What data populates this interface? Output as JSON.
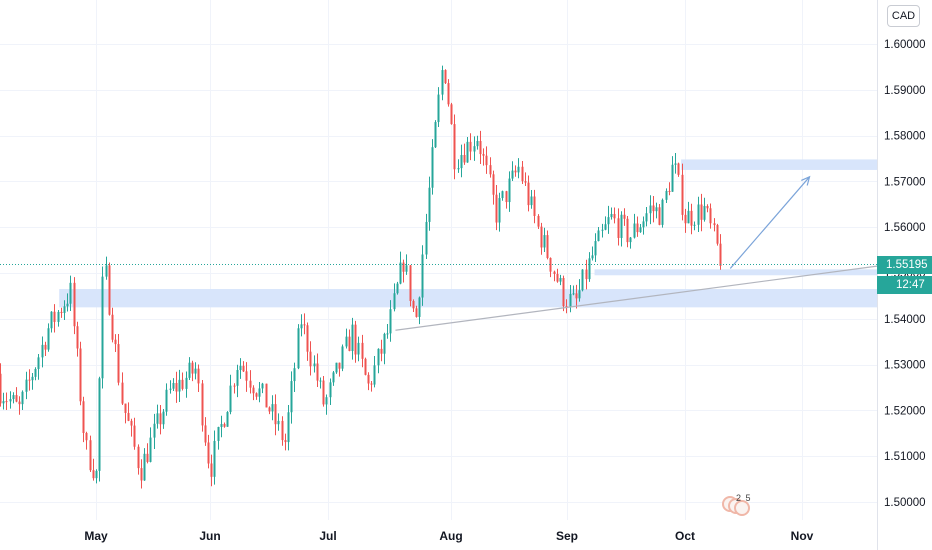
{
  "currency": "CAD",
  "last_price_label": "1.55195",
  "countdown": "12:47",
  "events_badge": "2 5",
  "colors": {
    "up": "#26a69a",
    "down": "#ef5350",
    "zone": "#d6e4fb",
    "trendline": "#b2b5be",
    "arrow": "#7ba4d9",
    "grid": "#f0f3fa"
  },
  "chart_data": {
    "type": "candlestick",
    "x_axis": {
      "labels": [
        "May",
        "Jun",
        "Jul",
        "Aug",
        "Sep",
        "Oct",
        "Nov"
      ]
    },
    "y_axis": {
      "range": [
        1.495,
        1.6055
      ],
      "ticks": [
        "1.50000",
        "1.51000",
        "1.52000",
        "1.53000",
        "1.54000",
        "1.55000",
        "1.56000",
        "1.57000",
        "1.58000",
        "1.59000",
        "1.60000"
      ]
    },
    "last_price": 1.55195,
    "series_path": [
      [
        "2021-04-01",
        1.528
      ],
      [
        "2021-04-10",
        1.52
      ],
      [
        "2021-04-18",
        1.538
      ],
      [
        "2021-04-24",
        1.546
      ],
      [
        "2021-04-28",
        1.512
      ],
      [
        "2021-05-01",
        1.506
      ],
      [
        "2021-05-03",
        1.553
      ],
      [
        "2021-05-08",
        1.522
      ],
      [
        "2021-05-13",
        1.507
      ],
      [
        "2021-05-21",
        1.524
      ],
      [
        "2021-05-28",
        1.529
      ],
      [
        "2021-06-01",
        1.507
      ],
      [
        "2021-06-08",
        1.531
      ],
      [
        "2021-06-15",
        1.522
      ],
      [
        "2021-06-20",
        1.513
      ],
      [
        "2021-06-24",
        1.54
      ],
      [
        "2021-06-30",
        1.521
      ],
      [
        "2021-07-07",
        1.537
      ],
      [
        "2021-07-11",
        1.525
      ],
      [
        "2021-07-16",
        1.537
      ],
      [
        "2021-07-20",
        1.553
      ],
      [
        "2021-07-23",
        1.539
      ],
      [
        "2021-07-27",
        1.573
      ],
      [
        "2021-07-30",
        1.597
      ],
      [
        "2021-08-02",
        1.575
      ],
      [
        "2021-08-08",
        1.58
      ],
      [
        "2021-08-13",
        1.563
      ],
      [
        "2021-08-19",
        1.573
      ],
      [
        "2021-08-24",
        1.56
      ],
      [
        "2021-08-31",
        1.545
      ],
      [
        "2021-09-03",
        1.543
      ],
      [
        "2021-09-07",
        1.553
      ],
      [
        "2021-09-12",
        1.562
      ],
      [
        "2021-09-17",
        1.558
      ],
      [
        "2021-09-22",
        1.564
      ],
      [
        "2021-09-25",
        1.563
      ],
      [
        "2021-09-28",
        1.574
      ],
      [
        "2021-10-01",
        1.562
      ],
      [
        "2021-10-06",
        1.564
      ],
      [
        "2021-10-10",
        1.554
      ],
      [
        "2021-10-11",
        1.552
      ]
    ],
    "zones": [
      {
        "from": "2021-04-21",
        "to": "end",
        "low": 1.5425,
        "high": 1.5465
      },
      {
        "from": "2021-09-30",
        "to": "end",
        "low": 1.5725,
        "high": 1.5748
      },
      {
        "from": "2021-09-08",
        "to": "end",
        "low": 1.5495,
        "high": 1.5508
      }
    ],
    "trendline": [
      [
        "2021-07-18",
        1.5375
      ],
      [
        "end",
        1.5515
      ]
    ],
    "projection_arrow": [
      [
        "2021-10-13",
        1.551
      ],
      [
        "2021-11-03",
        1.571
      ]
    ]
  }
}
